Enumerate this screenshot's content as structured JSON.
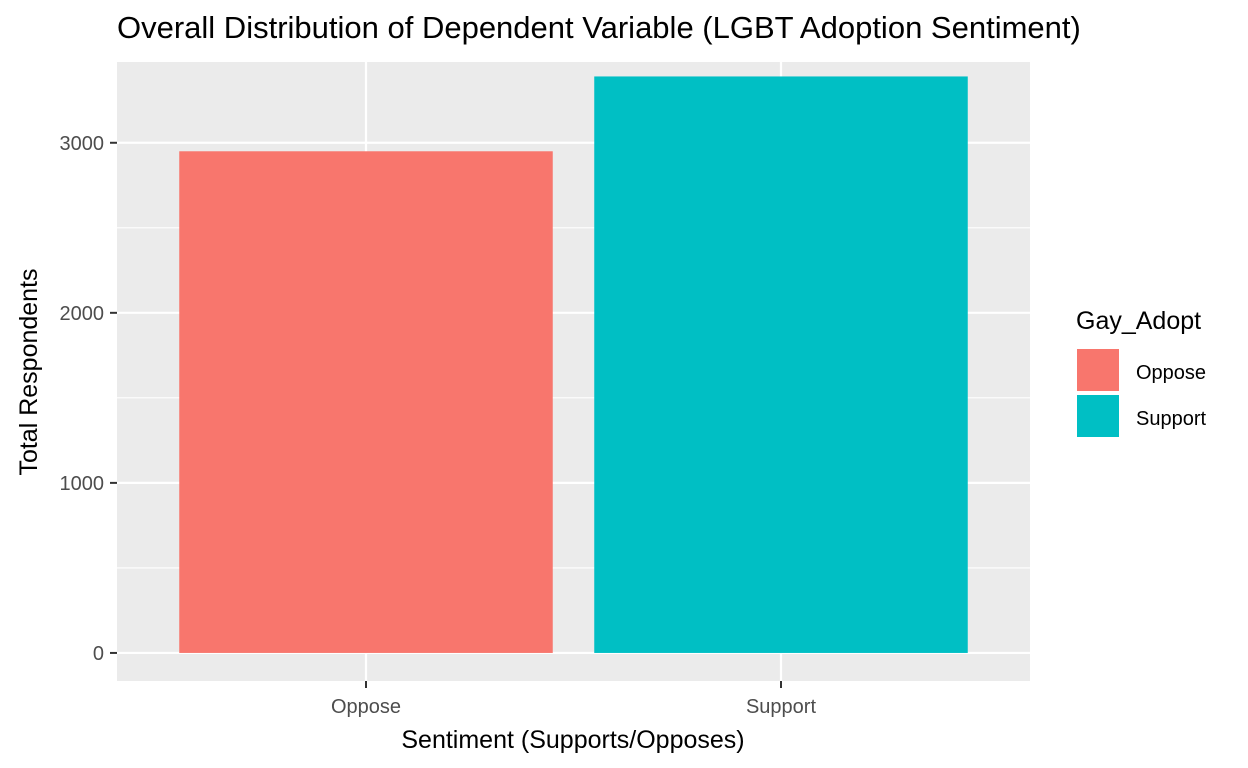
{
  "chart_data": {
    "type": "bar",
    "title": "Overall Distribution of Dependent Variable (LGBT Adoption Sentiment)",
    "xlabel": "Sentiment (Supports/Opposes)",
    "ylabel": "Total Respondents",
    "categories": [
      "Oppose",
      "Support"
    ],
    "values": [
      2950,
      3390
    ],
    "colors": [
      "#F8766D",
      "#00BFC4"
    ],
    "ylim": [
      -165,
      3475
    ],
    "yticks": [
      0,
      1000,
      2000,
      3000
    ],
    "ytick_labels": [
      "0",
      "1000",
      "2000",
      "3000"
    ],
    "grid": true,
    "panel_background": "#EBEBEB",
    "legend": {
      "title": "Gay_Adopt",
      "position": "right",
      "entries": [
        {
          "label": "Oppose",
          "color": "#F8766D"
        },
        {
          "label": "Support",
          "color": "#00BFC4"
        }
      ]
    }
  }
}
